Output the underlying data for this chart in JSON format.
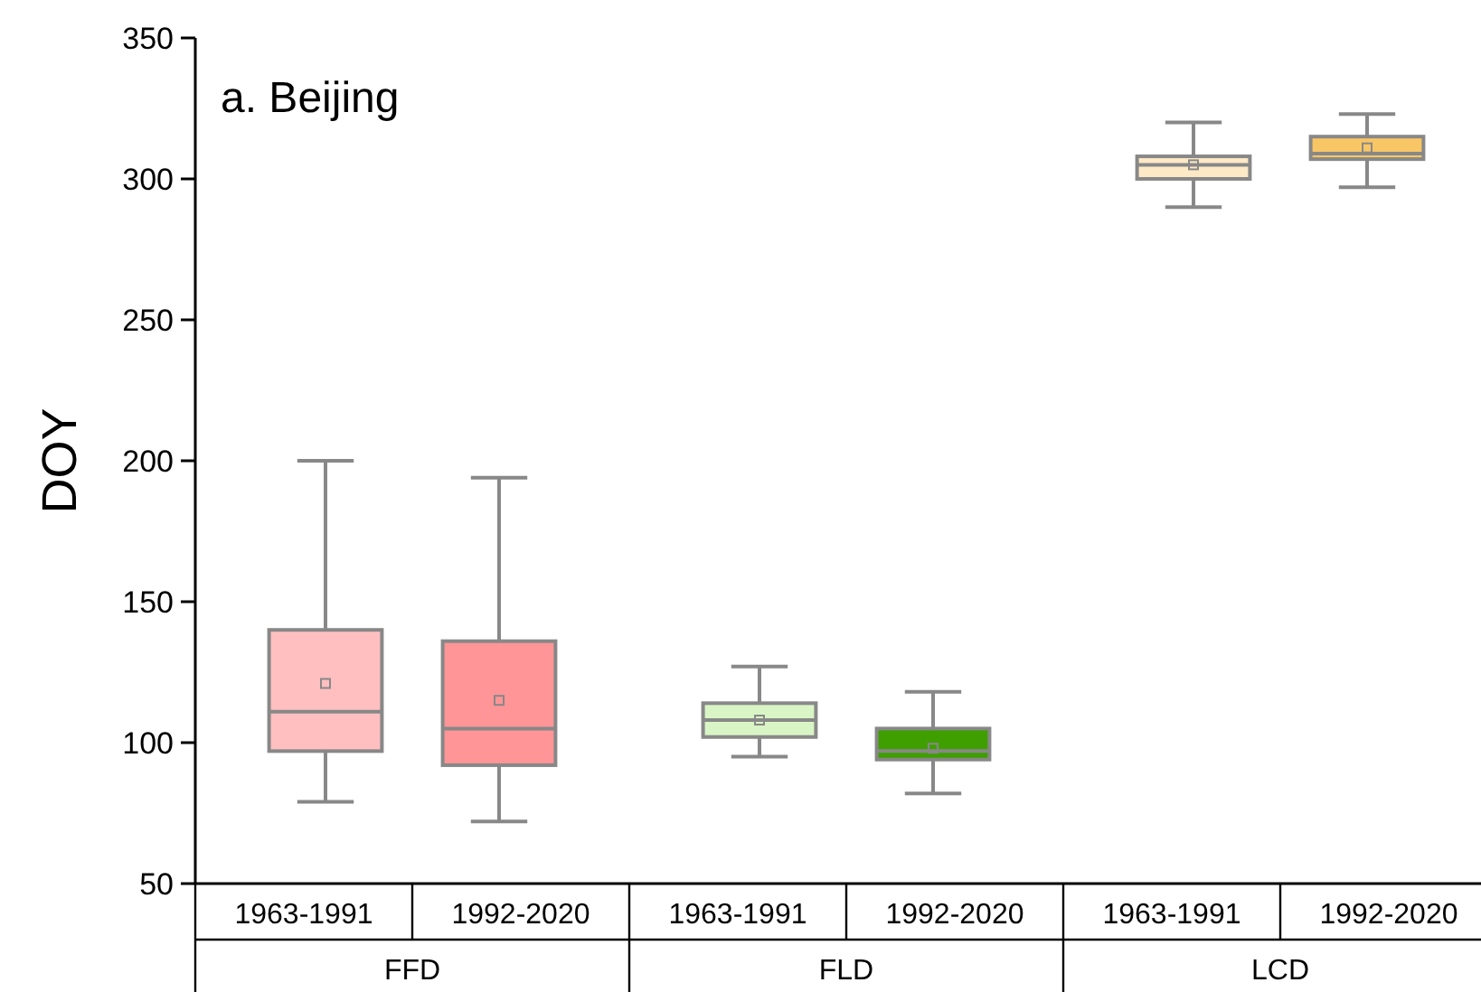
{
  "chart_data": {
    "type": "box",
    "title": "a. Beijing",
    "ylabel": "DOY",
    "categories": [
      "1963-1991",
      "1992-2020",
      "1963-1991",
      "1992-2020",
      "1963-1991",
      "1992-2020"
    ],
    "annotations": [
      "FFD",
      "FLD",
      "LCD"
    ],
    "colors": [
      "#ffbfc0",
      "#ff9597",
      "#d9f5c5",
      "#3f9f00",
      "#fde9c6",
      "#f9c665"
    ],
    "boxes": [
      {
        "low": 79,
        "q1": 97,
        "median": 111,
        "q3": 140,
        "high": 200,
        "mean": 121
      },
      {
        "low": 72,
        "q1": 92,
        "median": 105,
        "q3": 136,
        "high": 194,
        "mean": 115
      },
      {
        "low": 95,
        "q1": 102,
        "median": 108,
        "q3": 114,
        "high": 127,
        "mean": 108
      },
      {
        "low": 82,
        "q1": 94,
        "median": 97,
        "q3": 105,
        "high": 118,
        "mean": 98
      },
      {
        "low": 290,
        "q1": 300,
        "median": 305,
        "q3": 308,
        "high": 320,
        "mean": 305
      },
      {
        "low": 297,
        "q1": 307,
        "median": 309,
        "q3": 315,
        "high": 323,
        "mean": 311
      }
    ],
    "ylim": [
      50,
      350
    ],
    "yticks": [
      50,
      100,
      150,
      200,
      250,
      300,
      350
    ]
  }
}
